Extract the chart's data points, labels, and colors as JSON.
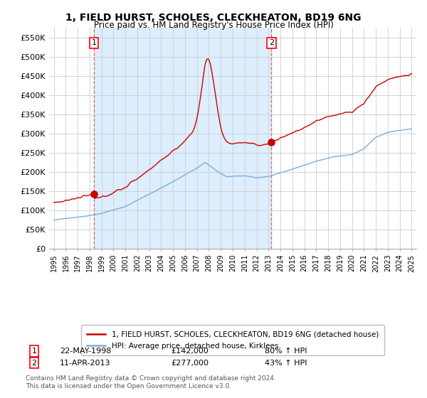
{
  "title": "1, FIELD HURST, SCHOLES, CLECKHEATON, BD19 6NG",
  "subtitle": "Price paid vs. HM Land Registry's House Price Index (HPI)",
  "ylabel_ticks": [
    "£0",
    "£50K",
    "£100K",
    "£150K",
    "£200K",
    "£250K",
    "£300K",
    "£350K",
    "£400K",
    "£450K",
    "£500K",
    "£550K"
  ],
  "ytick_values": [
    0,
    50000,
    100000,
    150000,
    200000,
    250000,
    300000,
    350000,
    400000,
    450000,
    500000,
    550000
  ],
  "ylim": [
    0,
    575000
  ],
  "sale1_year": 1998.37,
  "sale1_price": 142000,
  "sale2_year": 2013.25,
  "sale2_price": 277000,
  "sale1_date": "22-MAY-1998",
  "sale2_date": "11-APR-2013",
  "sale1_hpi": "80% ↑ HPI",
  "sale2_hpi": "43% ↑ HPI",
  "legend_line1": "1, FIELD HURST, SCHOLES, CLECKHEATON, BD19 6NG (detached house)",
  "legend_line2": "HPI: Average price, detached house, Kirklees",
  "footnote": "Contains HM Land Registry data © Crown copyright and database right 2024.\nThis data is licensed under the Open Government Licence v3.0.",
  "line_color_red": "#cc0000",
  "line_color_blue": "#7bafd4",
  "shade_color": "#ddeeff",
  "background_color": "#ffffff",
  "grid_color": "#cccccc"
}
